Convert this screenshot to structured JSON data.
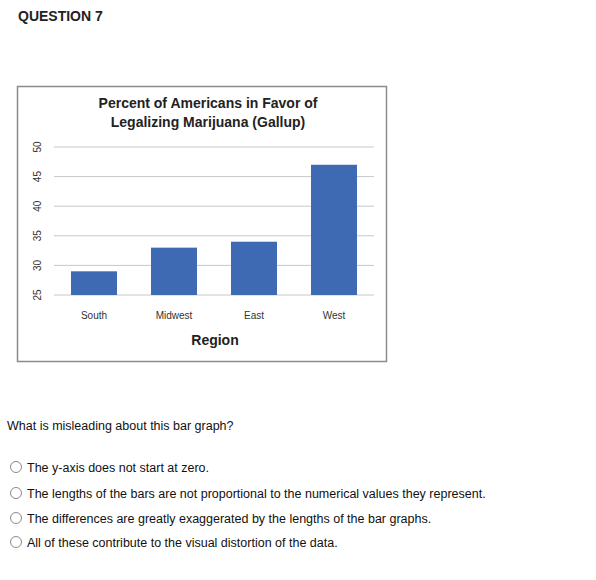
{
  "header": "QUESTION 7",
  "chart_data": {
    "type": "bar",
    "title": "Percent of Americans in Favor of Legalizing Marijuana (Gallup)",
    "x_label": "Region",
    "categories": [
      "South",
      "Midwest",
      "East",
      "West"
    ],
    "values": [
      29,
      33,
      34,
      47
    ],
    "color": "#3d6ab3",
    "ylim": [
      25,
      50
    ],
    "yticks": [
      25,
      30,
      35,
      40,
      45,
      50
    ],
    "grid": true
  },
  "question": "What is misleading about this bar graph?",
  "options": [
    "The y-axis does not start at zero.",
    "The lengths of the bars are not proportional to the numerical values they represent.",
    "The differences are greatly exaggerated by the lengths of the bar graphs.",
    "All of these contribute to the visual distortion of the data."
  ]
}
